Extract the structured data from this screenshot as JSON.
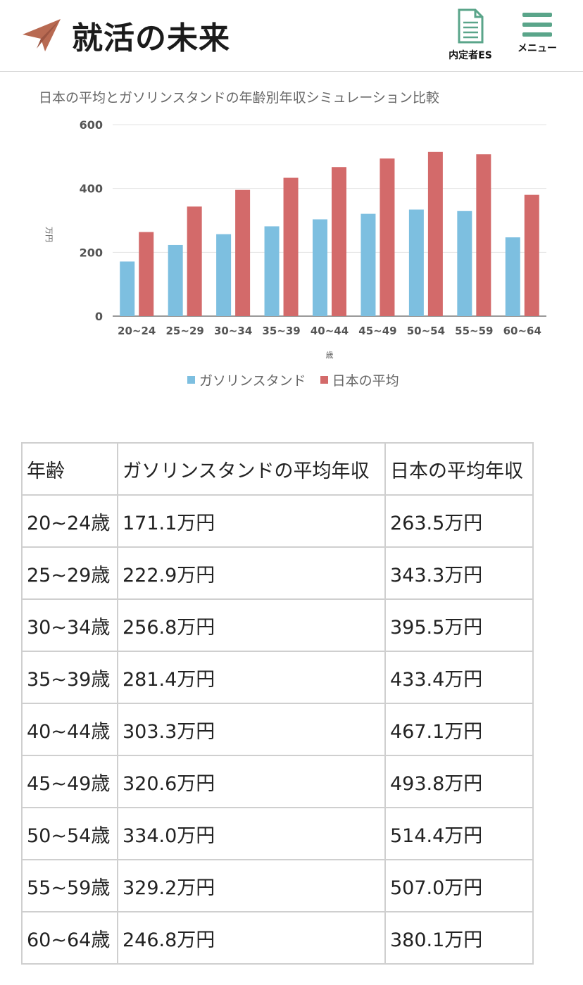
{
  "header": {
    "logo_text": "就活の未来",
    "es_label": "内定者ES",
    "menu_label": "メニュー"
  },
  "chart_data": {
    "type": "bar",
    "title": "日本の平均とガソリンスタンドの年齢別年収シミュレーション比較",
    "xlabel": "歳",
    "ylabel": "万円",
    "ylim": [
      0,
      600
    ],
    "yticks": [
      0,
      200,
      400,
      600
    ],
    "grid": true,
    "legend_position": "bottom",
    "categories": [
      "20~24",
      "25~29",
      "30~34",
      "35~39",
      "40~44",
      "45~49",
      "50~54",
      "55~59",
      "60~64"
    ],
    "series": [
      {
        "name": "ガソリンスタンド",
        "color": "#7dbfe0",
        "values": [
          171.1,
          222.9,
          256.8,
          281.4,
          303.3,
          320.6,
          334.0,
          329.2,
          246.8
        ]
      },
      {
        "name": "日本の平均",
        "color": "#d36a6a",
        "values": [
          263.5,
          343.3,
          395.5,
          433.4,
          467.1,
          493.8,
          514.4,
          507.0,
          380.1
        ]
      }
    ]
  },
  "table": {
    "headers": [
      "年齢",
      "ガソリンスタンドの平均年収",
      "日本の平均年収"
    ],
    "rows": [
      [
        "20~24歳",
        "171.1万円",
        "263.5万円"
      ],
      [
        "25~29歳",
        "222.9万円",
        "343.3万円"
      ],
      [
        "30~34歳",
        "256.8万円",
        "395.5万円"
      ],
      [
        "35~39歳",
        "281.4万円",
        "433.4万円"
      ],
      [
        "40~44歳",
        "303.3万円",
        "467.1万円"
      ],
      [
        "45~49歳",
        "320.6万円",
        "493.8万円"
      ],
      [
        "50~54歳",
        "334.0万円",
        "514.4万円"
      ],
      [
        "55~59歳",
        "329.2万円",
        "507.0万円"
      ],
      [
        "60~64歳",
        "246.8万円",
        "380.1万円"
      ]
    ]
  }
}
